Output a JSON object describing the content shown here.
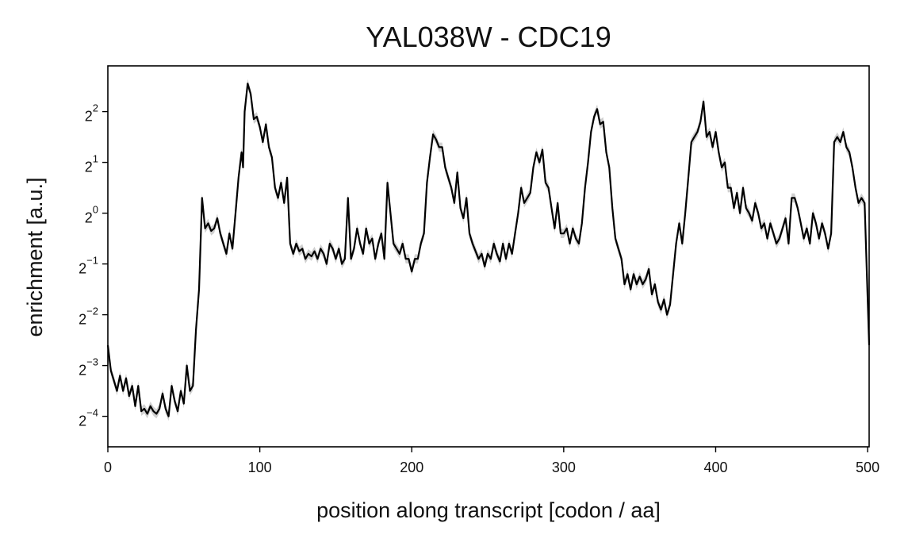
{
  "chart_data": {
    "type": "line",
    "title": "YAL038W - CDC19",
    "xlabel": "position along transcript [codon / aa]",
    "ylabel": "enrichment [a.u.]",
    "xlim": [
      0,
      501
    ],
    "ylim_log2": [
      -4.6,
      2.9
    ],
    "y_scale": "log2",
    "x_ticks": [
      0,
      100,
      200,
      300,
      400,
      500
    ],
    "y_ticks": [
      {
        "base": "2",
        "exp": "2",
        "log2": 2
      },
      {
        "base": "2",
        "exp": "1",
        "log2": 1
      },
      {
        "base": "2",
        "exp": "0",
        "log2": 0
      },
      {
        "base": "2",
        "exp": "−1",
        "log2": -1
      },
      {
        "base": "2",
        "exp": "−2",
        "log2": -2
      },
      {
        "base": "2",
        "exp": "−3",
        "log2": -3
      },
      {
        "base": "2",
        "exp": "−4",
        "log2": -4
      }
    ],
    "grid": false,
    "colors": {
      "line": "#000000",
      "band": "#c8c8c8",
      "frame": "#000000"
    },
    "series": [
      {
        "band": "confidence",
        "points_log2": [
          [
            0,
            -2.6
          ],
          [
            2,
            -3.1
          ],
          [
            4,
            -3.3
          ],
          [
            6,
            -3.5
          ],
          [
            8,
            -3.2
          ],
          [
            10,
            -3.5
          ],
          [
            12,
            -3.25
          ],
          [
            14,
            -3.6
          ],
          [
            16,
            -3.4
          ],
          [
            18,
            -3.8
          ],
          [
            20,
            -3.4
          ],
          [
            22,
            -3.9
          ],
          [
            24,
            -3.85
          ],
          [
            26,
            -3.95
          ],
          [
            28,
            -3.8
          ],
          [
            30,
            -3.9
          ],
          [
            32,
            -3.95
          ],
          [
            34,
            -3.85
          ],
          [
            36,
            -3.55
          ],
          [
            38,
            -3.85
          ],
          [
            40,
            -4.0
          ],
          [
            42,
            -3.4
          ],
          [
            44,
            -3.7
          ],
          [
            46,
            -3.9
          ],
          [
            48,
            -3.5
          ],
          [
            50,
            -3.75
          ],
          [
            52,
            -3.0
          ],
          [
            54,
            -3.5
          ],
          [
            56,
            -3.4
          ],
          [
            58,
            -2.3
          ],
          [
            60,
            -1.5
          ],
          [
            62,
            0.3
          ],
          [
            64,
            -0.3
          ],
          [
            66,
            -0.2
          ],
          [
            68,
            -0.35
          ],
          [
            70,
            -0.3
          ],
          [
            72,
            -0.1
          ],
          [
            74,
            -0.4
          ],
          [
            76,
            -0.6
          ],
          [
            78,
            -0.8
          ],
          [
            80,
            -0.4
          ],
          [
            82,
            -0.7
          ],
          [
            84,
            0.0
          ],
          [
            86,
            0.7
          ],
          [
            88,
            1.2
          ],
          [
            89,
            0.9
          ],
          [
            90,
            2.0
          ],
          [
            92,
            2.55
          ],
          [
            94,
            2.35
          ],
          [
            96,
            1.85
          ],
          [
            98,
            1.9
          ],
          [
            100,
            1.7
          ],
          [
            102,
            1.4
          ],
          [
            104,
            1.75
          ],
          [
            106,
            1.3
          ],
          [
            108,
            1.1
          ],
          [
            110,
            0.5
          ],
          [
            112,
            0.3
          ],
          [
            114,
            0.6
          ],
          [
            116,
            0.2
          ],
          [
            118,
            0.7
          ],
          [
            120,
            -0.6
          ],
          [
            122,
            -0.8
          ],
          [
            124,
            -0.6
          ],
          [
            126,
            -0.75
          ],
          [
            128,
            -0.7
          ],
          [
            130,
            -0.9
          ],
          [
            132,
            -0.8
          ],
          [
            134,
            -0.85
          ],
          [
            136,
            -0.75
          ],
          [
            138,
            -0.9
          ],
          [
            140,
            -0.7
          ],
          [
            142,
            -0.8
          ],
          [
            144,
            -1.0
          ],
          [
            146,
            -0.6
          ],
          [
            148,
            -0.7
          ],
          [
            150,
            -0.9
          ],
          [
            152,
            -0.7
          ],
          [
            154,
            -1.0
          ],
          [
            156,
            -0.9
          ],
          [
            158,
            0.3
          ],
          [
            160,
            -0.9
          ],
          [
            162,
            -0.7
          ],
          [
            164,
            -0.3
          ],
          [
            166,
            -0.6
          ],
          [
            168,
            -0.8
          ],
          [
            170,
            -0.3
          ],
          [
            172,
            -0.6
          ],
          [
            174,
            -0.5
          ],
          [
            176,
            -0.9
          ],
          [
            178,
            -0.6
          ],
          [
            180,
            -0.4
          ],
          [
            182,
            -0.9
          ],
          [
            184,
            0.6
          ],
          [
            186,
            0.0
          ],
          [
            188,
            -0.6
          ],
          [
            190,
            -0.7
          ],
          [
            192,
            -0.8
          ],
          [
            194,
            -0.6
          ],
          [
            196,
            -0.9
          ],
          [
            198,
            -0.9
          ],
          [
            200,
            -1.15
          ],
          [
            202,
            -0.9
          ],
          [
            204,
            -0.9
          ],
          [
            206,
            -0.6
          ],
          [
            208,
            -0.4
          ],
          [
            210,
            0.6
          ],
          [
            212,
            1.1
          ],
          [
            214,
            1.55
          ],
          [
            216,
            1.45
          ],
          [
            218,
            1.3
          ],
          [
            220,
            1.3
          ],
          [
            222,
            0.9
          ],
          [
            224,
            0.7
          ],
          [
            226,
            0.5
          ],
          [
            228,
            0.2
          ],
          [
            230,
            0.8
          ],
          [
            232,
            0.1
          ],
          [
            234,
            -0.1
          ],
          [
            236,
            0.3
          ],
          [
            238,
            -0.4
          ],
          [
            240,
            -0.6
          ],
          [
            242,
            -0.75
          ],
          [
            244,
            -0.9
          ],
          [
            246,
            -0.8
          ],
          [
            248,
            -1.05
          ],
          [
            250,
            -0.8
          ],
          [
            252,
            -0.9
          ],
          [
            254,
            -0.6
          ],
          [
            256,
            -0.8
          ],
          [
            258,
            -0.95
          ],
          [
            260,
            -0.6
          ],
          [
            262,
            -0.9
          ],
          [
            264,
            -0.6
          ],
          [
            266,
            -0.8
          ],
          [
            268,
            -0.4
          ],
          [
            270,
            0.0
          ],
          [
            272,
            0.5
          ],
          [
            274,
            0.2
          ],
          [
            276,
            0.3
          ],
          [
            278,
            0.4
          ],
          [
            280,
            0.9
          ],
          [
            282,
            1.2
          ],
          [
            284,
            1.0
          ],
          [
            286,
            1.25
          ],
          [
            288,
            0.6
          ],
          [
            290,
            0.5
          ],
          [
            292,
            0.1
          ],
          [
            294,
            -0.3
          ],
          [
            296,
            0.2
          ],
          [
            298,
            -0.4
          ],
          [
            300,
            -0.4
          ],
          [
            302,
            -0.3
          ],
          [
            304,
            -0.6
          ],
          [
            306,
            -0.3
          ],
          [
            308,
            -0.5
          ],
          [
            310,
            -0.6
          ],
          [
            312,
            -0.2
          ],
          [
            314,
            0.5
          ],
          [
            316,
            1.0
          ],
          [
            318,
            1.6
          ],
          [
            320,
            1.9
          ],
          [
            322,
            2.05
          ],
          [
            324,
            1.75
          ],
          [
            326,
            1.8
          ],
          [
            328,
            1.2
          ],
          [
            330,
            0.9
          ],
          [
            332,
            0.1
          ],
          [
            334,
            -0.5
          ],
          [
            336,
            -0.7
          ],
          [
            338,
            -0.9
          ],
          [
            340,
            -1.4
          ],
          [
            342,
            -1.2
          ],
          [
            344,
            -1.5
          ],
          [
            346,
            -1.2
          ],
          [
            348,
            -1.4
          ],
          [
            350,
            -1.25
          ],
          [
            352,
            -1.4
          ],
          [
            354,
            -1.3
          ],
          [
            356,
            -1.1
          ],
          [
            358,
            -1.6
          ],
          [
            360,
            -1.4
          ],
          [
            362,
            -1.75
          ],
          [
            364,
            -1.9
          ],
          [
            366,
            -1.7
          ],
          [
            368,
            -2.0
          ],
          [
            370,
            -1.8
          ],
          [
            372,
            -1.2
          ],
          [
            374,
            -0.6
          ],
          [
            376,
            -0.2
          ],
          [
            378,
            -0.6
          ],
          [
            380,
            0.0
          ],
          [
            382,
            0.7
          ],
          [
            384,
            1.4
          ],
          [
            386,
            1.5
          ],
          [
            388,
            1.6
          ],
          [
            390,
            1.8
          ],
          [
            392,
            2.2
          ],
          [
            394,
            1.5
          ],
          [
            396,
            1.6
          ],
          [
            398,
            1.3
          ],
          [
            400,
            1.6
          ],
          [
            402,
            1.2
          ],
          [
            404,
            0.9
          ],
          [
            406,
            1.0
          ],
          [
            408,
            0.5
          ],
          [
            410,
            0.5
          ],
          [
            412,
            0.1
          ],
          [
            414,
            0.4
          ],
          [
            416,
            0.0
          ],
          [
            418,
            0.5
          ],
          [
            420,
            0.1
          ],
          [
            422,
            0.0
          ],
          [
            424,
            -0.15
          ],
          [
            426,
            0.2
          ],
          [
            428,
            0.0
          ],
          [
            430,
            -0.3
          ],
          [
            432,
            -0.2
          ],
          [
            434,
            -0.5
          ],
          [
            436,
            -0.2
          ],
          [
            438,
            -0.4
          ],
          [
            440,
            -0.6
          ],
          [
            442,
            -0.5
          ],
          [
            444,
            -0.3
          ],
          [
            446,
            -0.1
          ],
          [
            448,
            -0.6
          ],
          [
            450,
            0.3
          ],
          [
            452,
            0.3
          ],
          [
            454,
            0.1
          ],
          [
            456,
            -0.2
          ],
          [
            458,
            -0.5
          ],
          [
            460,
            -0.3
          ],
          [
            462,
            -0.6
          ],
          [
            464,
            0.0
          ],
          [
            466,
            -0.2
          ],
          [
            468,
            -0.5
          ],
          [
            470,
            -0.2
          ],
          [
            472,
            -0.4
          ],
          [
            474,
            -0.7
          ],
          [
            476,
            -0.4
          ],
          [
            478,
            1.4
          ],
          [
            480,
            1.5
          ],
          [
            482,
            1.4
          ],
          [
            484,
            1.6
          ],
          [
            486,
            1.3
          ],
          [
            488,
            1.2
          ],
          [
            490,
            0.9
          ],
          [
            492,
            0.5
          ],
          [
            494,
            0.2
          ],
          [
            496,
            0.3
          ],
          [
            498,
            0.2
          ],
          [
            501,
            -2.6
          ]
        ]
      }
    ]
  }
}
